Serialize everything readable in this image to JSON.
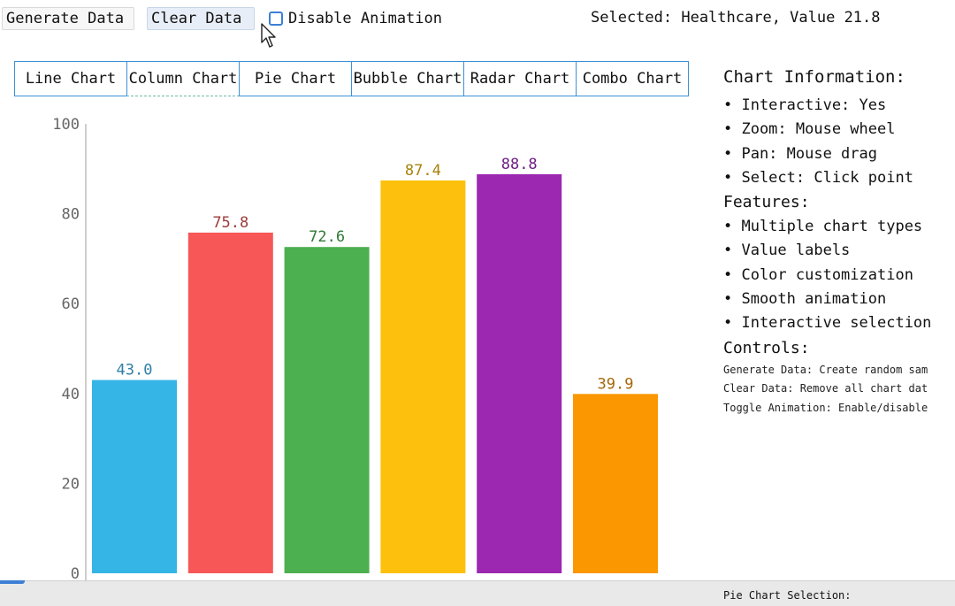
{
  "toolbar": {
    "generate_label": "Generate Data",
    "clear_label": "Clear Data",
    "animation_label": "Disable Animation",
    "selected_status": "Selected: Healthcare, Value 21.8"
  },
  "tabs": [
    {
      "label": "Line Chart"
    },
    {
      "label": "Column Chart"
    },
    {
      "label": "Pie Chart"
    },
    {
      "label": "Bubble Chart"
    },
    {
      "label": "Radar Chart"
    },
    {
      "label": "Combo Chart"
    }
  ],
  "active_tab": "Column Chart",
  "info": {
    "title": "Chart Information:",
    "items": [
      "• Interactive: Yes",
      "• Zoom: Mouse wheel",
      "• Pan: Mouse drag",
      "• Select: Click point"
    ],
    "features_title": "Features:",
    "features": [
      "• Multiple chart types",
      "• Value labels",
      "• Color customization",
      "• Smooth animation",
      "• Interactive selection"
    ],
    "controls_title": "Controls:",
    "controls": [
      "Generate Data: Create random sam",
      "Clear Data: Remove all chart dat",
      "Toggle Animation: Enable/disable"
    ]
  },
  "bottom": {
    "pie_selection": "Pie Chart Selection:"
  },
  "chart_data": {
    "type": "bar",
    "values": [
      43.0,
      75.8,
      72.6,
      87.4,
      88.8,
      39.9
    ],
    "value_labels": [
      "43.0",
      "75.8",
      "72.6",
      "87.4",
      "88.8",
      "39.9"
    ],
    "colors": [
      "#35b5e6",
      "#f75757",
      "#4caf50",
      "#fdc10d",
      "#9c27b0",
      "#fb9700"
    ],
    "label_colors": [
      "#2e7fa6",
      "#9c3b3b",
      "#2f7a34",
      "#a8820a",
      "#6d1d85",
      "#a5680a"
    ],
    "yticks": [
      0,
      20,
      40,
      60,
      80,
      100
    ],
    "ylim": [
      0,
      100
    ],
    "grid": false
  }
}
